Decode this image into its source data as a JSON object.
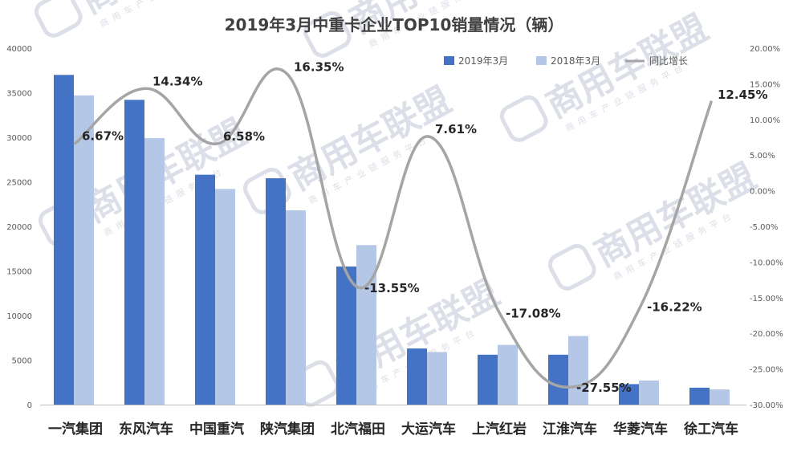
{
  "chart_data": {
    "type": "bar",
    "title": "2019年3月中重卡企业TOP10销量情况（辆）",
    "categories": [
      "一汽集团",
      "东风汽车",
      "中国重汽",
      "陕汽集团",
      "北汽福田",
      "大运汽车",
      "上汽红岩",
      "江淮汽车",
      "华菱汽车",
      "徐工汽车"
    ],
    "series": [
      {
        "name": "2019年3月",
        "type": "bar",
        "axis": "left",
        "color": "#4472C4",
        "values": [
          37000,
          34200,
          25800,
          25400,
          15500,
          6300,
          5600,
          5600,
          2300,
          1900
        ]
      },
      {
        "name": "2018年3月",
        "type": "bar",
        "axis": "left",
        "color": "#B4C7E7",
        "values": [
          34700,
          29900,
          24200,
          21800,
          17900,
          5900,
          6700,
          7700,
          2700,
          1700
        ]
      },
      {
        "name": "同比增长",
        "type": "line",
        "axis": "right",
        "color": "#A5A5A5",
        "values": [
          6.67,
          14.34,
          6.58,
          16.35,
          -13.55,
          7.61,
          -17.08,
          -27.55,
          -16.22,
          12.45
        ],
        "labels": [
          "6.67%",
          "14.34%",
          "6.58%",
          "16.35%",
          "-13.55%",
          "7.61%",
          "-17.08%",
          "-27.55%",
          "-16.22%",
          "12.45%"
        ]
      }
    ],
    "y_left": {
      "min": 0,
      "max": 40000,
      "ticks": [
        "0",
        "5000",
        "10000",
        "15000",
        "20000",
        "25000",
        "30000",
        "35000",
        "40000"
      ]
    },
    "y_right": {
      "min": -30,
      "max": 20,
      "ticks": [
        "-30.00%",
        "-25.00%",
        "-20.00%",
        "-15.00%",
        "-10.00%",
        "-5.00%",
        "0.00%",
        "5.00%",
        "10.00%",
        "15.00%",
        "20.00%"
      ]
    },
    "grid": false,
    "legend_position": "top-right"
  },
  "watermark": {
    "text": "商用车联盟",
    "subtext": "商用车产业链服务平台"
  }
}
